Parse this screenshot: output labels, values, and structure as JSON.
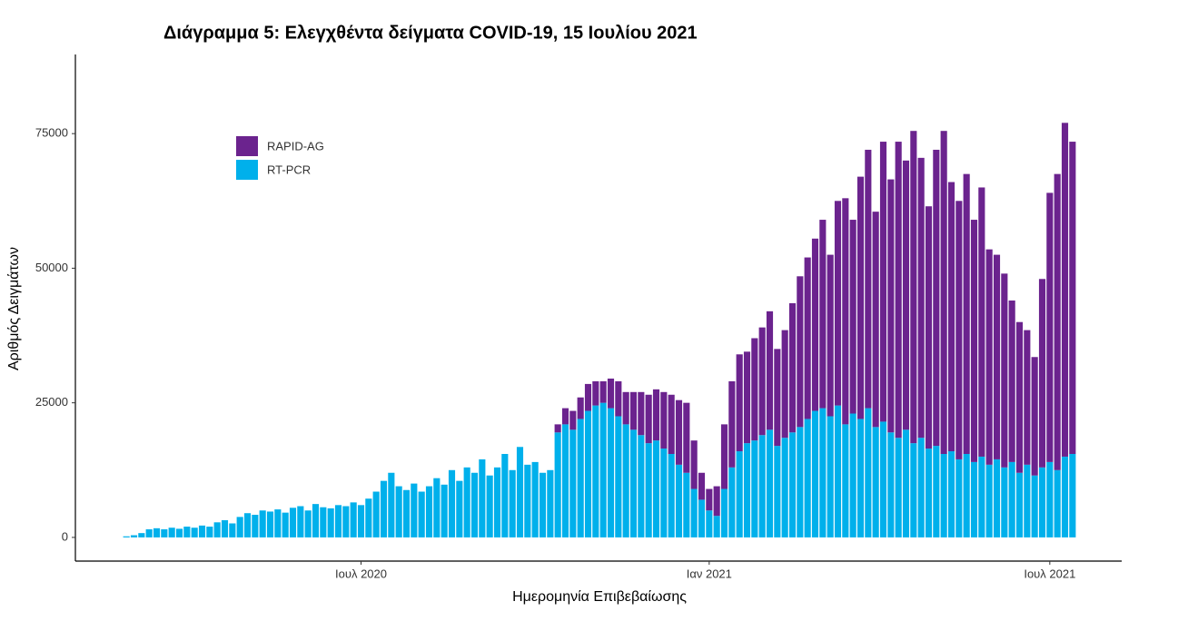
{
  "chart_data": {
    "type": "stacked_bar",
    "title": "Διάγραμμα 5: Ελεγχθέντα δείγματα COVID-19, 15 Ιουλίου 2021",
    "x_label": "Ημερομηνία Επιβεβαίωσης",
    "y_label": "Αριθμός Δειγμάτων",
    "ylim": [
      -4400,
      89700
    ],
    "yticks": [
      0,
      25000,
      50000,
      75000
    ],
    "legend": "top-left",
    "categories": [
      null,
      null,
      null,
      null,
      null,
      null,
      null,
      null,
      null,
      null,
      null,
      null,
      null,
      null,
      null,
      null,
      null,
      null,
      null,
      null,
      null,
      null,
      null,
      null,
      null,
      null,
      null,
      null,
      null,
      null,
      null,
      "Ιουλ 2020",
      null,
      null,
      null,
      null,
      null,
      null,
      null,
      null,
      null,
      null,
      null,
      null,
      null,
      null,
      null,
      null,
      null,
      null,
      null,
      null,
      null,
      null,
      null,
      null,
      null,
      null,
      null,
      null,
      null,
      null,
      null,
      null,
      null,
      null,
      null,
      null,
      null,
      null,
      null,
      null,
      null,
      null,
      null,
      null,
      null,
      "Ιαν 2021",
      null,
      null,
      null,
      null,
      null,
      null,
      null,
      null,
      null,
      null,
      null,
      null,
      null,
      null,
      null,
      null,
      null,
      null,
      null,
      null,
      null,
      null,
      null,
      null,
      null,
      null,
      null,
      null,
      null,
      null,
      null,
      null,
      null,
      null,
      null,
      null,
      null,
      null,
      null,
      null,
      null,
      null,
      null,
      null,
      "Ιουλ 2021",
      null,
      null,
      null
    ],
    "series": [
      {
        "name": "RAPID-AG",
        "color": "#6b238e",
        "values": [
          0,
          0,
          0,
          0,
          0,
          0,
          0,
          0,
          0,
          0,
          0,
          0,
          0,
          0,
          0,
          0,
          0,
          0,
          0,
          0,
          0,
          0,
          0,
          0,
          0,
          0,
          0,
          0,
          0,
          0,
          0,
          0,
          0,
          0,
          0,
          0,
          0,
          0,
          0,
          0,
          0,
          0,
          0,
          0,
          0,
          0,
          0,
          0,
          0,
          0,
          0,
          0,
          0,
          0,
          0,
          0,
          0,
          1500,
          3000,
          3500,
          4000,
          5000,
          4500,
          4000,
          5500,
          6500,
          6000,
          7000,
          8000,
          9000,
          9500,
          10500,
          11000,
          12000,
          13000,
          9000,
          5000,
          4000,
          5500,
          12000,
          16000,
          18000,
          17000,
          19000,
          20000,
          22000,
          18000,
          20000,
          24000,
          28000,
          30000,
          32000,
          35000,
          30000,
          38000,
          42000,
          36000,
          45000,
          48000,
          40000,
          52000,
          47000,
          55000,
          50000,
          58000,
          52000,
          45000,
          55000,
          60000,
          50000,
          48000,
          52000,
          45000,
          50000,
          40000,
          38000,
          36000,
          30000,
          28000,
          25000,
          22000,
          35000,
          50000,
          55000,
          62000,
          58000
        ]
      },
      {
        "name": "RT-PCR",
        "color": "#00b0eb",
        "values": [
          200,
          400,
          800,
          1500,
          1700,
          1500,
          1800,
          1600,
          2000,
          1800,
          2200,
          2000,
          2800,
          3200,
          2600,
          3800,
          4500,
          4200,
          5000,
          4800,
          5200,
          4600,
          5500,
          5800,
          5000,
          6200,
          5600,
          5400,
          6000,
          5800,
          6500,
          6000,
          7200,
          8500,
          10500,
          12000,
          9500,
          8800,
          10000,
          8500,
          9500,
          11000,
          9800,
          12500,
          10500,
          13000,
          12000,
          14500,
          11500,
          13000,
          15500,
          12500,
          16800,
          13500,
          14000,
          12000,
          12500,
          19500,
          21000,
          20000,
          22000,
          23500,
          24500,
          25000,
          24000,
          22500,
          21000,
          20000,
          19000,
          17500,
          18000,
          16500,
          15500,
          13500,
          12000,
          9000,
          7000,
          5000,
          4000,
          9000,
          13000,
          16000,
          17500,
          18000,
          19000,
          20000,
          17000,
          18500,
          19500,
          20500,
          22000,
          23500,
          24000,
          22500,
          24500,
          21000,
          23000,
          22000,
          24000,
          20500,
          21500,
          19500,
          18500,
          20000,
          17500,
          18500,
          16500,
          17000,
          15500,
          16000,
          14500,
          15500,
          14000,
          15000,
          13500,
          14500,
          13000,
          14000,
          12000,
          13500,
          11500,
          13000,
          14000,
          12500,
          15000,
          15500
        ]
      }
    ]
  }
}
